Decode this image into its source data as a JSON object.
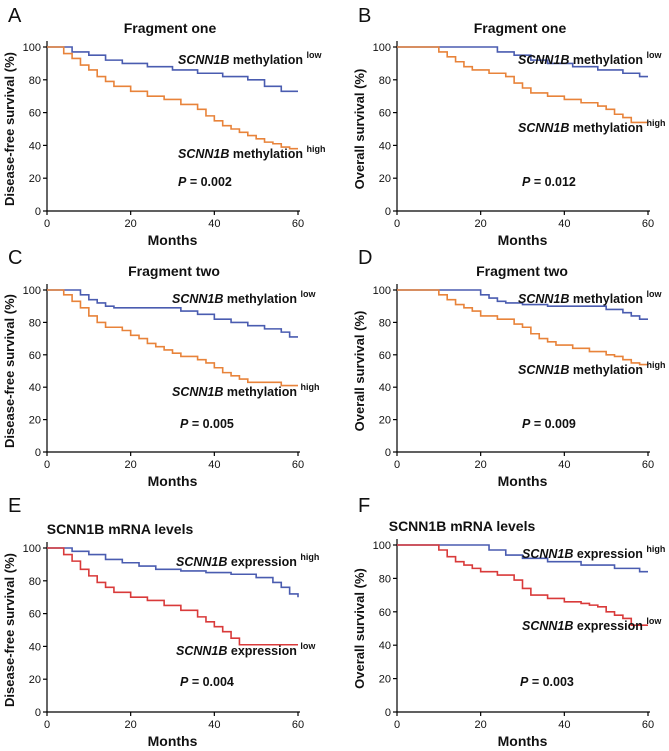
{
  "colors": {
    "low_line": "#4a5cb0",
    "high_line": "#e8833a",
    "red_line": "#d93a3a"
  },
  "chart_data": [
    {
      "type": "line",
      "step": true,
      "panel": "A",
      "title": "Fragment one",
      "xlabel": "Months",
      "ylabel": "Disease-free survival (%)",
      "xlim": [
        0,
        60
      ],
      "ylim": [
        0,
        100
      ],
      "xticks": [
        0,
        20,
        40,
        60
      ],
      "yticks": [
        0,
        20,
        40,
        60,
        80,
        100
      ],
      "p_value_label": "P",
      "p_value_rest": " = 0.002",
      "series": [
        {
          "name": "methylation low",
          "gene": "SCNN1B",
          "text": " methylation ",
          "sup": "low",
          "color": "#4a5cb0",
          "x": [
            0,
            6,
            10,
            14,
            18,
            24,
            30,
            36,
            42,
            48,
            52,
            56,
            60
          ],
          "y": [
            100,
            97,
            95,
            92,
            90,
            88,
            86,
            84,
            82,
            80,
            76,
            73,
            73
          ]
        },
        {
          "name": "methylation high",
          "gene": "SCNN1B",
          "text": " methylation ",
          "sup": "high",
          "color": "#e8833a",
          "x": [
            0,
            4,
            6,
            8,
            10,
            12,
            14,
            16,
            20,
            24,
            28,
            32,
            36,
            38,
            40,
            42,
            44,
            46,
            48,
            50,
            52,
            54,
            56,
            58,
            60
          ],
          "y": [
            100,
            96,
            93,
            89,
            86,
            82,
            79,
            76,
            73,
            70,
            68,
            65,
            62,
            58,
            55,
            52,
            50,
            48,
            46,
            44,
            42,
            41,
            39,
            38,
            38
          ]
        }
      ]
    },
    {
      "type": "line",
      "step": true,
      "panel": "B",
      "title": "Fragment one",
      "xlabel": "Months",
      "ylabel": "Overall survival (%)",
      "xlim": [
        0,
        60
      ],
      "ylim": [
        0,
        100
      ],
      "xticks": [
        0,
        20,
        40,
        60
      ],
      "yticks": [
        0,
        20,
        40,
        60,
        80,
        100
      ],
      "p_value_label": "P",
      "p_value_rest": " = 0.012",
      "series": [
        {
          "name": "methylation low",
          "gene": "SCNN1B",
          "text": " methylation ",
          "sup": "low",
          "color": "#4a5cb0",
          "x": [
            0,
            24,
            28,
            32,
            36,
            42,
            48,
            54,
            58,
            60
          ],
          "y": [
            100,
            97,
            95,
            92,
            90,
            88,
            86,
            84,
            82,
            82
          ]
        },
        {
          "name": "methylation high",
          "gene": "SCNN1B",
          "text": " methylation ",
          "sup": "high",
          "color": "#e8833a",
          "x": [
            0,
            10,
            12,
            14,
            16,
            18,
            22,
            26,
            28,
            30,
            32,
            36,
            40,
            44,
            48,
            50,
            52,
            54,
            56,
            60
          ],
          "y": [
            100,
            97,
            94,
            91,
            88,
            86,
            84,
            82,
            78,
            75,
            72,
            70,
            68,
            66,
            64,
            62,
            59,
            57,
            54,
            54
          ]
        }
      ]
    },
    {
      "type": "line",
      "step": true,
      "panel": "C",
      "title": "Fragment two",
      "xlabel": "Months",
      "ylabel": "Disease-free survival (%)",
      "xlim": [
        0,
        60
      ],
      "ylim": [
        0,
        100
      ],
      "xticks": [
        0,
        20,
        40,
        60
      ],
      "yticks": [
        0,
        20,
        40,
        60,
        80,
        100
      ],
      "p_value_label": "P",
      "p_value_rest": " = 0.005",
      "series": [
        {
          "name": "methylation low",
          "gene": "SCNN1B",
          "text": " methylation ",
          "sup": "low",
          "color": "#4a5cb0",
          "x": [
            0,
            8,
            10,
            12,
            14,
            16,
            32,
            36,
            40,
            44,
            48,
            52,
            56,
            58,
            60
          ],
          "y": [
            100,
            97,
            94,
            92,
            90,
            89,
            87,
            85,
            82,
            80,
            78,
            76,
            74,
            71,
            71
          ]
        },
        {
          "name": "methylation high",
          "gene": "SCNN1B",
          "text": " methylation ",
          "sup": "high",
          "color": "#e8833a",
          "x": [
            0,
            4,
            6,
            8,
            10,
            12,
            14,
            18,
            20,
            22,
            24,
            26,
            28,
            30,
            32,
            36,
            38,
            40,
            42,
            44,
            46,
            48,
            54,
            56,
            60
          ],
          "y": [
            100,
            97,
            93,
            89,
            84,
            80,
            77,
            75,
            72,
            70,
            67,
            65,
            63,
            61,
            59,
            57,
            55,
            52,
            49,
            47,
            45,
            43,
            43,
            41,
            41
          ]
        }
      ]
    },
    {
      "type": "line",
      "step": true,
      "panel": "D",
      "title": "Fragment two",
      "xlabel": "Months",
      "ylabel": "Overall survival (%)",
      "xlim": [
        0,
        60
      ],
      "ylim": [
        0,
        100
      ],
      "xticks": [
        0,
        20,
        40,
        60
      ],
      "yticks": [
        0,
        20,
        40,
        60,
        80,
        100
      ],
      "p_value_label": "P",
      "p_value_rest": " = 0.009",
      "series": [
        {
          "name": "methylation low",
          "gene": "SCNN1B",
          "text": " methylation ",
          "sup": "low",
          "color": "#4a5cb0",
          "x": [
            0,
            20,
            22,
            24,
            26,
            30,
            36,
            44,
            50,
            54,
            56,
            58,
            60
          ],
          "y": [
            100,
            97,
            95,
            93,
            92,
            91,
            90,
            90,
            88,
            86,
            84,
            82,
            82
          ]
        },
        {
          "name": "methylation high",
          "gene": "SCNN1B",
          "text": " methylation ",
          "sup": "high",
          "color": "#e8833a",
          "x": [
            0,
            10,
            12,
            14,
            16,
            18,
            20,
            24,
            28,
            30,
            32,
            34,
            36,
            38,
            42,
            46,
            50,
            52,
            54,
            56,
            58,
            60
          ],
          "y": [
            100,
            97,
            94,
            91,
            89,
            87,
            84,
            82,
            79,
            77,
            73,
            70,
            68,
            66,
            64,
            62,
            60,
            59,
            57,
            55,
            54,
            54
          ]
        }
      ]
    },
    {
      "type": "line",
      "step": true,
      "panel": "E",
      "title": "SCNN1B mRNA levels",
      "xlabel": "Months",
      "ylabel": "Disease-free survival (%)",
      "xlim": [
        0,
        60
      ],
      "ylim": [
        0,
        100
      ],
      "xticks": [
        0,
        20,
        40,
        60
      ],
      "yticks": [
        0,
        20,
        40,
        60,
        80,
        100
      ],
      "p_value_label": "P",
      "p_value_rest": " = 0.004",
      "series": [
        {
          "name": "expression high",
          "gene": "SCNN1B",
          "text": " expression ",
          "sup": "high",
          "color": "#4a5cb0",
          "x": [
            0,
            6,
            10,
            14,
            18,
            22,
            26,
            32,
            38,
            44,
            50,
            54,
            56,
            58,
            60
          ],
          "y": [
            100,
            98,
            96,
            93,
            91,
            89,
            87,
            86,
            85,
            84,
            82,
            79,
            76,
            72,
            70
          ]
        },
        {
          "name": "expression low",
          "gene": "SCNN1B",
          "text": " expression ",
          "sup": "low",
          "color": "#d93a3a",
          "x": [
            0,
            4,
            6,
            8,
            10,
            12,
            14,
            16,
            20,
            24,
            28,
            32,
            36,
            38,
            40,
            42,
            44,
            46,
            50,
            60
          ],
          "y": [
            100,
            96,
            92,
            87,
            83,
            79,
            76,
            73,
            70,
            68,
            65,
            62,
            58,
            55,
            52,
            49,
            45,
            41,
            41,
            41
          ]
        }
      ]
    },
    {
      "type": "line",
      "step": true,
      "panel": "F",
      "title": "SCNN1B mRNA levels",
      "xlabel": "Months",
      "ylabel": "Overall survival (%)",
      "xlim": [
        0,
        60
      ],
      "ylim": [
        0,
        100
      ],
      "xticks": [
        0,
        20,
        40,
        60
      ],
      "yticks": [
        0,
        20,
        40,
        60,
        80,
        100
      ],
      "p_value_label": "P",
      "p_value_rest": " = 0.003",
      "series": [
        {
          "name": "expression high",
          "gene": "SCNN1B",
          "text": " expression ",
          "sup": "high",
          "color": "#4a5cb0",
          "x": [
            0,
            22,
            26,
            30,
            36,
            44,
            52,
            58,
            60
          ],
          "y": [
            100,
            97,
            94,
            92,
            90,
            88,
            86,
            84,
            84
          ]
        },
        {
          "name": "expression low",
          "gene": "SCNN1B",
          "text": " expression ",
          "sup": "low",
          "color": "#d93a3a",
          "x": [
            0,
            10,
            12,
            14,
            16,
            18,
            20,
            24,
            28,
            30,
            32,
            36,
            40,
            44,
            46,
            48,
            50,
            52,
            54,
            56,
            60
          ],
          "y": [
            100,
            97,
            93,
            90,
            88,
            86,
            84,
            82,
            79,
            74,
            70,
            68,
            66,
            65,
            64,
            63,
            60,
            58,
            56,
            52,
            52
          ]
        }
      ]
    }
  ]
}
